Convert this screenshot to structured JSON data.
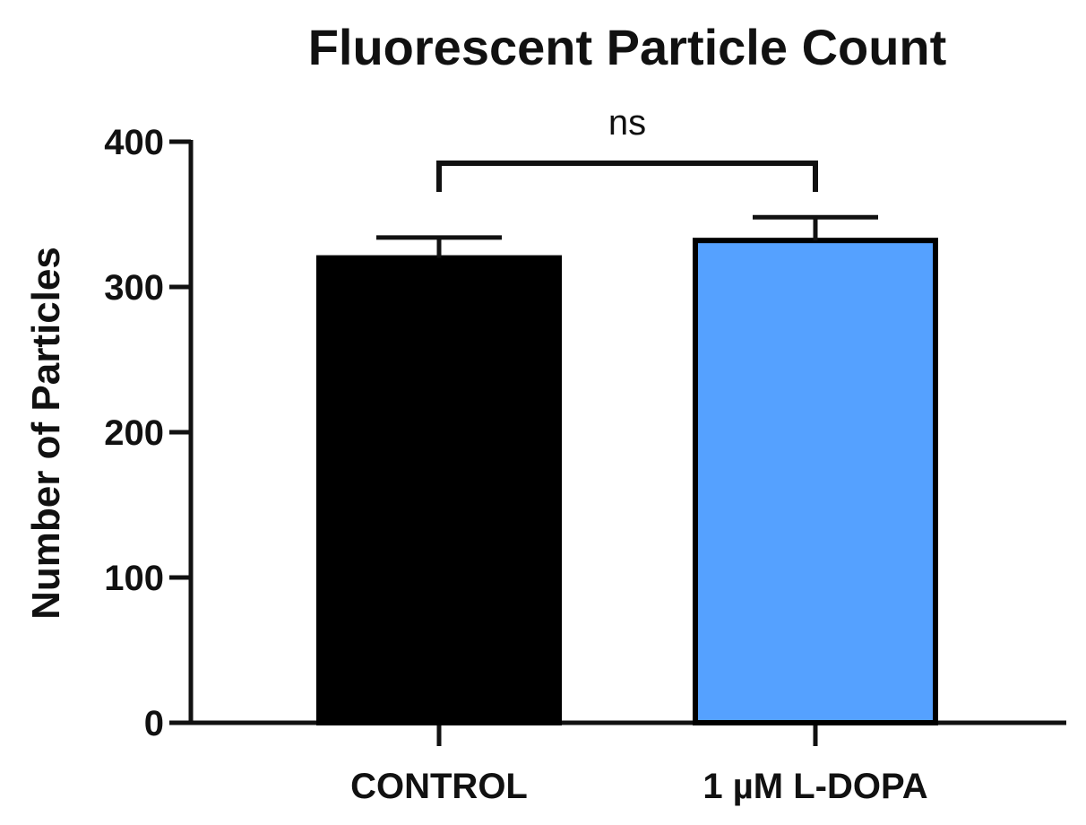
{
  "chart_data": {
    "type": "bar",
    "title": "Fluorescent Particle Count",
    "xlabel": "",
    "ylabel": "Number of Particles",
    "categories": [
      "CONTROL",
      "1 µM L-DOPA"
    ],
    "values": [
      320,
      332
    ],
    "error_bars": [
      14,
      16
    ],
    "bar_colors": [
      "#000000",
      "#55a1ff"
    ],
    "bar_edge_color": "#000000",
    "ylim": [
      0,
      400
    ],
    "yticks": [
      0,
      100,
      200,
      300,
      400
    ],
    "ytick_labels": [
      "0",
      "100",
      "200",
      "300",
      "400"
    ],
    "grid": false,
    "legend": "none",
    "significance": {
      "pair": [
        "CONTROL",
        "1 µM L-DOPA"
      ],
      "label": "ns"
    }
  }
}
